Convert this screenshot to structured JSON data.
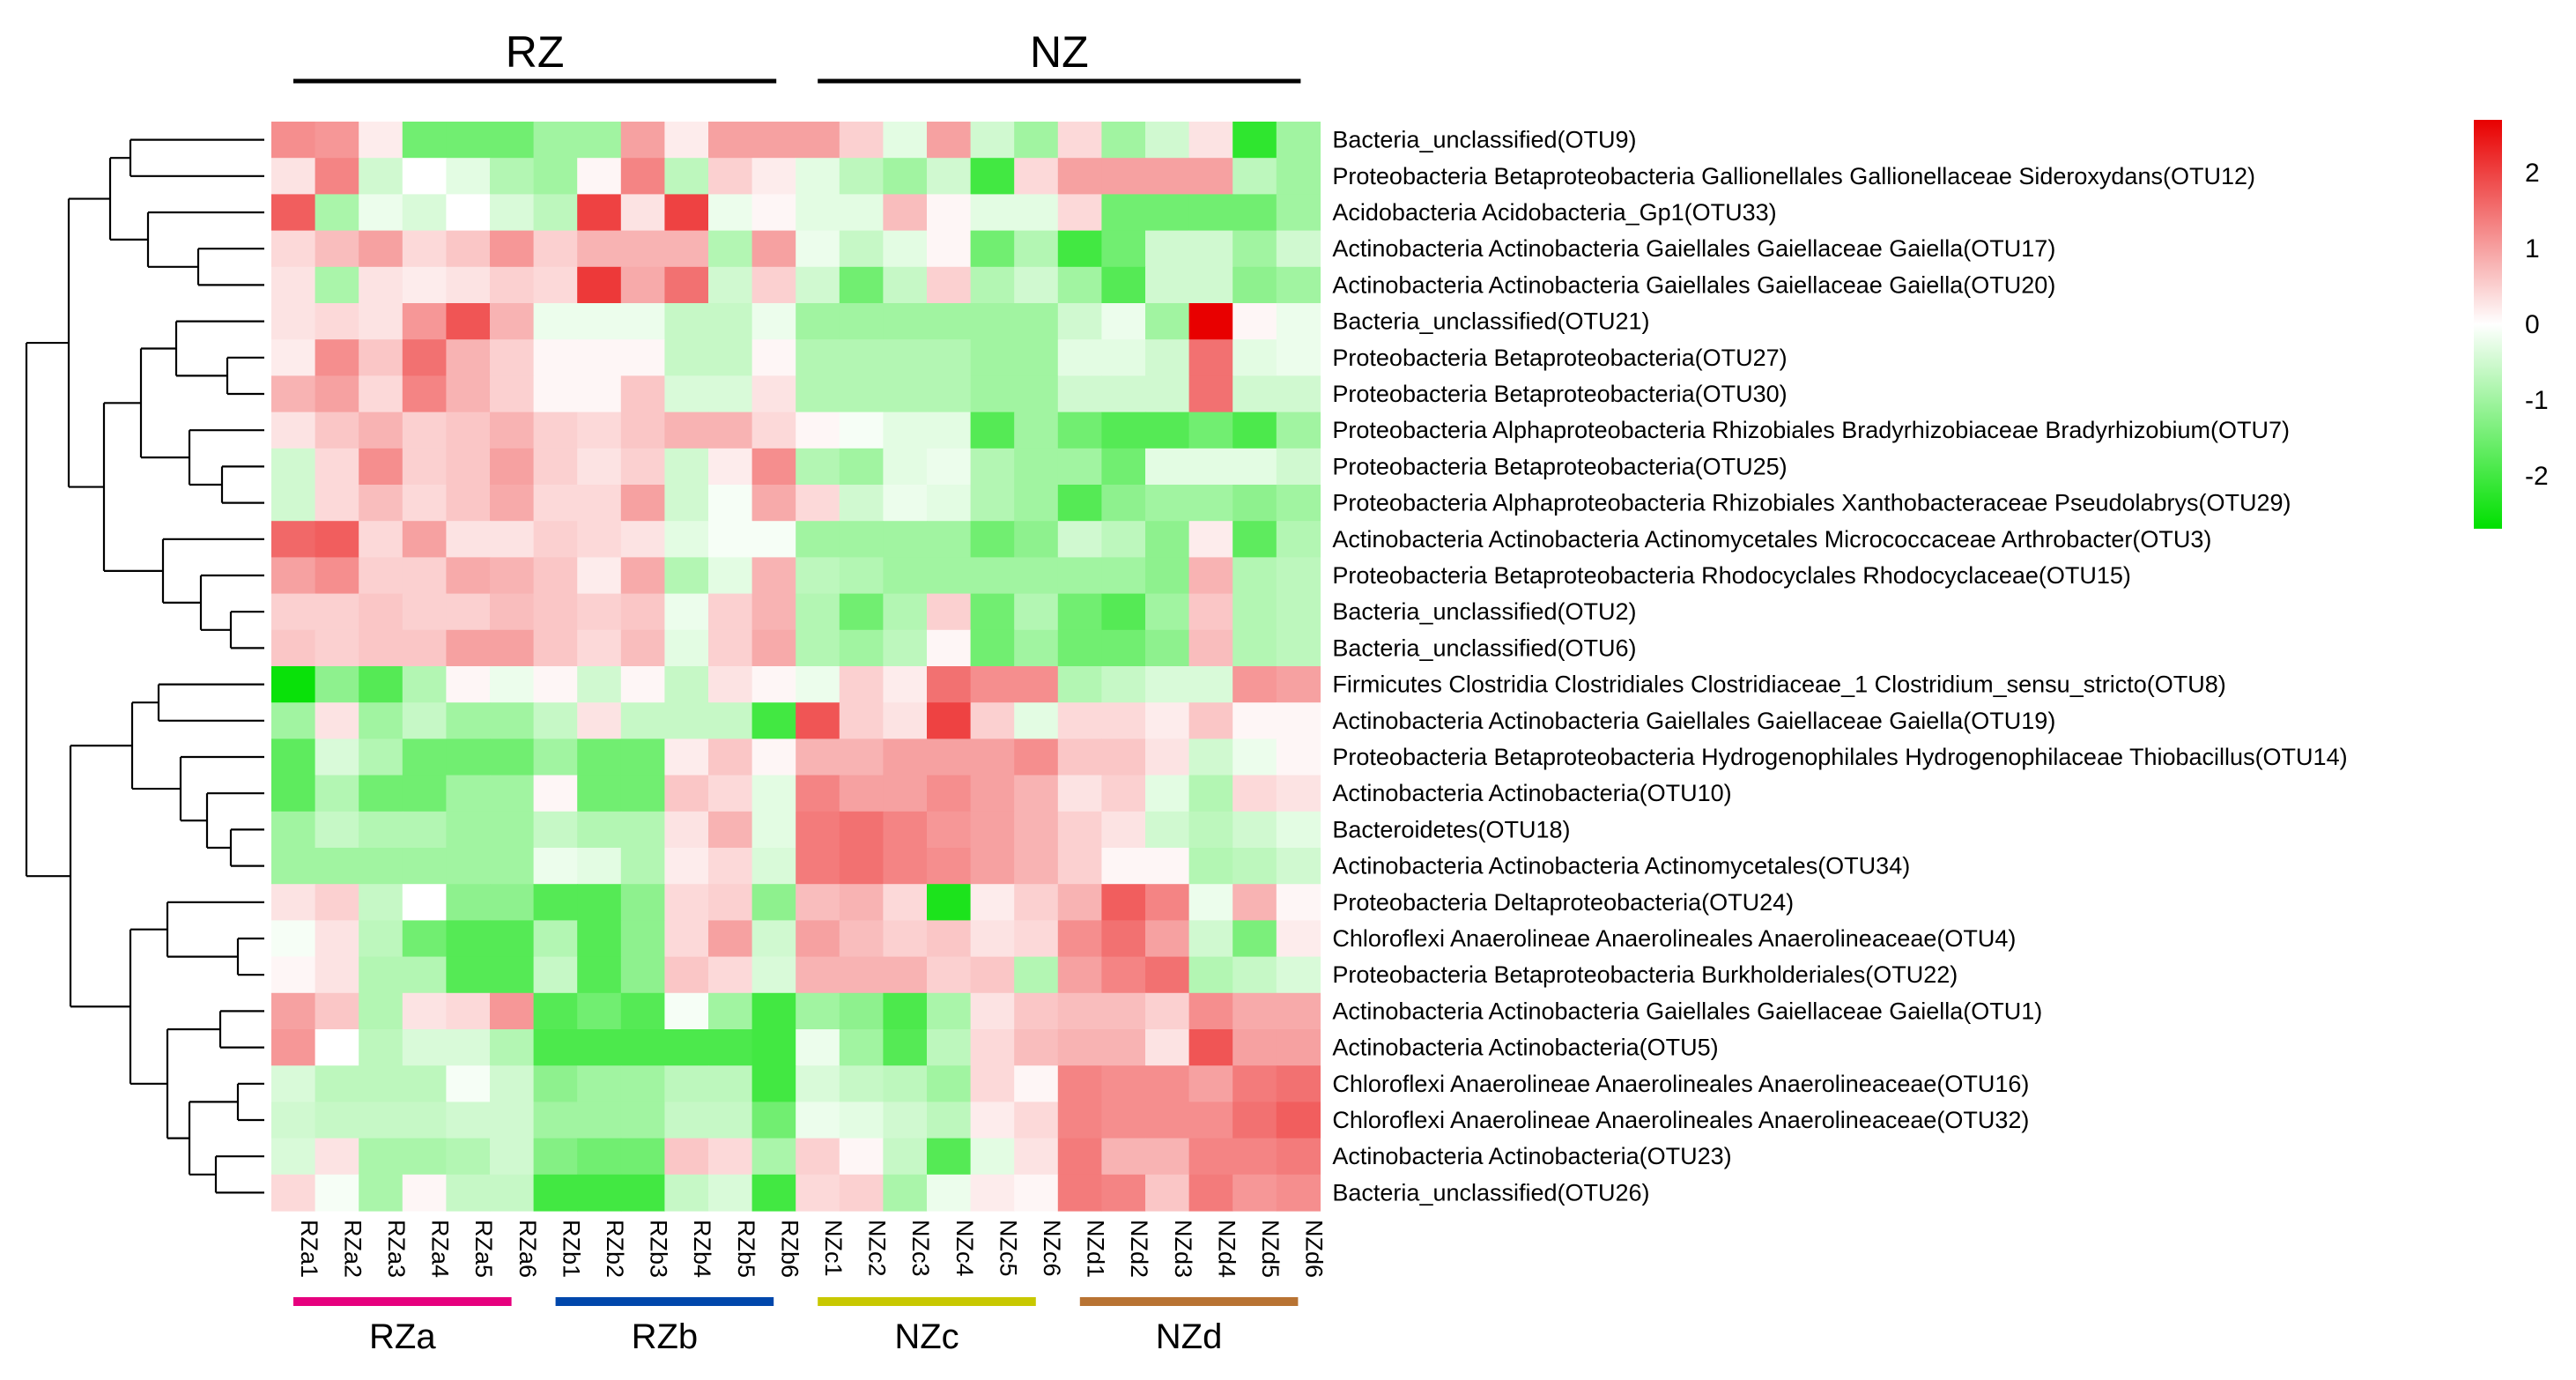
{
  "chart_data": {
    "type": "heatmap",
    "title": "",
    "group_labels": [
      "RZ",
      "NZ"
    ],
    "subgroup_labels": [
      "RZa",
      "RZb",
      "NZc",
      "NZd"
    ],
    "subgroup_colors": [
      "#e6007e",
      "#0047ab",
      "#c8c800",
      "#b87333"
    ],
    "columns": [
      "RZa1",
      "RZa2",
      "RZa3",
      "RZa4",
      "RZa5",
      "RZa6",
      "RZb1",
      "RZb2",
      "RZb3",
      "RZb4",
      "RZb5",
      "RZb6",
      "NZc1",
      "NZc2",
      "NZc3",
      "NZc4",
      "NZc5",
      "NZc6",
      "NZd1",
      "NZd2",
      "NZd3",
      "NZd4",
      "NZd5",
      "NZd6"
    ],
    "rows": [
      "Bacteria_unclassified(OTU9)",
      "Proteobacteria Betaproteobacteria Gallionellales Gallionellaceae Sideroxydans(OTU12)",
      "Acidobacteria Acidobacteria_Gp1(OTU33)",
      "Actinobacteria Actinobacteria Gaiellales Gaiellaceae Gaiella(OTU17)",
      "Actinobacteria Actinobacteria Gaiellales Gaiellaceae Gaiella(OTU20)",
      "Bacteria_unclassified(OTU21)",
      "Proteobacteria Betaproteobacteria(OTU27)",
      "Proteobacteria Betaproteobacteria(OTU30)",
      "Proteobacteria Alphaproteobacteria Rhizobiales Bradyrhizobiaceae Bradyrhizobium(OTU7)",
      "Proteobacteria Betaproteobacteria(OTU25)",
      "Proteobacteria Alphaproteobacteria Rhizobiales Xanthobacteraceae Pseudolabrys(OTU29)",
      "Actinobacteria Actinobacteria Actinomycetales Micrococcaceae Arthrobacter(OTU3)",
      "Proteobacteria Betaproteobacteria Rhodocyclales Rhodocyclaceae(OTU15)",
      "Bacteria_unclassified(OTU2)",
      "Bacteria_unclassified(OTU6)",
      "Firmicutes Clostridia Clostridiales Clostridiaceae_1 Clostridium_sensu_stricto(OTU8)",
      "Actinobacteria Actinobacteria Gaiellales Gaiellaceae Gaiella(OTU19)",
      "Proteobacteria Betaproteobacteria Hydrogenophilales Hydrogenophilaceae Thiobacillus(OTU14)",
      "Actinobacteria Actinobacteria(OTU10)",
      "Bacteroidetes(OTU18)",
      "Actinobacteria Actinobacteria Actinomycetales(OTU34)",
      "Proteobacteria Deltaproteobacteria(OTU24)",
      "Chloroflexi Anaerolineae Anaerolineales Anaerolineaceae(OTU4)",
      "Proteobacteria Betaproteobacteria Burkholderiales(OTU22)",
      "Actinobacteria Actinobacteria Gaiellales Gaiellaceae Gaiella(OTU1)",
      "Actinobacteria Actinobacteria(OTU5)",
      "Chloroflexi Anaerolineae Anaerolineales Anaerolineaceae(OTU16)",
      "Chloroflexi Anaerolineae Anaerolineales Anaerolineaceae(OTU32)",
      "Actinobacteria Actinobacteria(OTU23)",
      "Bacteria_unclassified(OTU26)"
    ],
    "values": [
      [
        1.2,
        1.1,
        0.2,
        -1.5,
        -1.5,
        -1.5,
        -1.0,
        -1.0,
        1.0,
        0.2,
        1.0,
        1.0,
        1.0,
        0.5,
        -0.3,
        1.0,
        -0.5,
        -1.0,
        0.4,
        -1.0,
        -0.5,
        0.3,
        -2.2,
        -1.0
      ],
      [
        0.3,
        1.3,
        -0.5,
        0.0,
        -0.3,
        -0.8,
        -1.0,
        0.1,
        1.3,
        -0.7,
        0.5,
        0.2,
        -0.3,
        -0.7,
        -1.0,
        -0.5,
        -2.0,
        0.4,
        1.0,
        1.0,
        1.0,
        1.0,
        -0.7,
        -1.0
      ],
      [
        1.7,
        -0.9,
        -0.2,
        -0.4,
        0.0,
        -0.4,
        -0.7,
        2.0,
        0.3,
        2.0,
        -0.2,
        0.1,
        -0.3,
        -0.3,
        0.7,
        0.1,
        -0.3,
        -0.3,
        0.4,
        -1.5,
        -1.5,
        -1.5,
        -1.5,
        -1.0
      ],
      [
        0.4,
        0.7,
        1.0,
        0.4,
        0.6,
        1.1,
        0.5,
        0.8,
        0.8,
        0.8,
        -0.8,
        1.0,
        -0.2,
        -0.6,
        -0.3,
        0.1,
        -1.5,
        -0.8,
        -2.0,
        -1.5,
        -0.5,
        -0.5,
        -1.0,
        -0.5
      ],
      [
        0.3,
        -0.9,
        0.3,
        0.2,
        0.3,
        0.5,
        0.4,
        2.1,
        0.9,
        1.5,
        -0.5,
        0.5,
        -0.5,
        -1.5,
        -0.6,
        0.5,
        -0.8,
        -0.5,
        -1.0,
        -1.8,
        -0.5,
        -0.5,
        -1.2,
        -1.0
      ],
      [
        0.3,
        0.4,
        0.3,
        1.1,
        1.8,
        0.8,
        -0.2,
        -0.2,
        -0.2,
        -0.6,
        -0.6,
        -0.2,
        -1.0,
        -1.0,
        -1.0,
        -1.0,
        -1.0,
        -1.0,
        -0.5,
        -0.2,
        -1.0,
        2.7,
        0.1,
        -0.2
      ],
      [
        0.2,
        1.2,
        0.6,
        1.5,
        0.8,
        0.5,
        0.1,
        0.1,
        0.1,
        -0.6,
        -0.6,
        0.1,
        -0.8,
        -0.8,
        -0.8,
        -0.8,
        -1.0,
        -1.0,
        -0.3,
        -0.3,
        -0.5,
        1.5,
        -0.3,
        -0.2
      ],
      [
        0.8,
        1.0,
        0.4,
        1.3,
        0.8,
        0.5,
        0.1,
        0.1,
        0.6,
        -0.4,
        -0.4,
        0.3,
        -0.8,
        -0.8,
        -0.8,
        -0.8,
        -1.0,
        -1.0,
        -0.5,
        -0.5,
        -0.5,
        1.5,
        -0.5,
        -0.5
      ],
      [
        0.3,
        0.6,
        0.8,
        0.5,
        0.6,
        0.8,
        0.5,
        0.4,
        0.6,
        0.8,
        0.8,
        0.4,
        0.1,
        -0.1,
        -0.3,
        -0.3,
        -1.8,
        -1.0,
        -1.5,
        -1.8,
        -1.8,
        -1.5,
        -1.9,
        -1.0
      ],
      [
        -0.5,
        0.4,
        1.2,
        0.5,
        0.6,
        1.0,
        0.5,
        0.3,
        0.5,
        -0.5,
        0.2,
        1.2,
        -0.8,
        -1.0,
        -0.3,
        -0.2,
        -0.8,
        -1.0,
        -1.0,
        -1.5,
        -0.3,
        -0.3,
        -0.3,
        -0.5
      ],
      [
        -0.5,
        0.4,
        0.7,
        0.4,
        0.6,
        0.9,
        0.4,
        0.4,
        1.0,
        -0.5,
        -0.1,
        0.9,
        0.4,
        -0.5,
        -0.2,
        -0.3,
        -0.8,
        -1.0,
        -1.8,
        -1.2,
        -1.0,
        -1.0,
        -1.2,
        -1.0
      ],
      [
        1.6,
        1.7,
        0.4,
        1.0,
        0.3,
        0.3,
        0.5,
        0.4,
        0.3,
        -0.3,
        -0.1,
        -0.1,
        -1.0,
        -1.0,
        -1.0,
        -1.0,
        -1.5,
        -1.2,
        -0.5,
        -0.7,
        -1.2,
        0.2,
        -1.7,
        -0.8
      ],
      [
        1.0,
        1.2,
        0.5,
        0.5,
        0.9,
        0.8,
        0.6,
        0.2,
        0.9,
        -0.8,
        -0.3,
        0.8,
        -0.7,
        -0.8,
        -1.0,
        -1.0,
        -1.0,
        -1.0,
        -1.0,
        -1.0,
        -1.2,
        0.8,
        -0.8,
        -0.7
      ],
      [
        0.5,
        0.5,
        0.6,
        0.5,
        0.5,
        0.7,
        0.6,
        0.5,
        0.6,
        -0.2,
        0.5,
        0.8,
        -0.8,
        -1.5,
        -0.8,
        0.5,
        -1.5,
        -0.8,
        -1.5,
        -1.8,
        -1.0,
        0.6,
        -0.8,
        -0.7
      ],
      [
        0.6,
        0.5,
        0.6,
        0.6,
        1.0,
        1.0,
        0.6,
        0.4,
        0.7,
        -0.3,
        0.5,
        0.9,
        -0.8,
        -1.0,
        -0.7,
        0.1,
        -1.5,
        -1.0,
        -1.5,
        -1.5,
        -1.2,
        0.7,
        -0.8,
        -0.7
      ],
      [
        -2.6,
        -1.2,
        -1.8,
        -0.8,
        0.1,
        -0.2,
        0.1,
        -0.5,
        0.1,
        -0.6,
        0.3,
        0.1,
        -0.2,
        0.5,
        0.2,
        1.5,
        1.2,
        1.2,
        -0.8,
        -0.6,
        -0.4,
        -0.4,
        1.1,
        1.0
      ],
      [
        -1.0,
        0.3,
        -1.0,
        -0.6,
        -1.0,
        -1.0,
        -0.6,
        0.3,
        -0.6,
        -0.6,
        -0.6,
        -2.0,
        1.8,
        0.5,
        0.3,
        2.0,
        0.5,
        -0.3,
        0.4,
        0.4,
        0.2,
        0.6,
        0.1,
        0.1
      ],
      [
        -1.7,
        -0.4,
        -0.8,
        -1.5,
        -1.5,
        -1.5,
        -1.0,
        -1.5,
        -1.5,
        0.2,
        0.6,
        0.1,
        0.8,
        0.8,
        1.0,
        1.0,
        1.0,
        1.2,
        0.6,
        0.6,
        0.3,
        -0.5,
        -0.2,
        0.1
      ],
      [
        -1.7,
        -0.8,
        -1.5,
        -1.5,
        -1.0,
        -1.0,
        0.1,
        -1.5,
        -1.5,
        0.6,
        0.4,
        -0.3,
        1.3,
        1.0,
        1.0,
        1.2,
        1.0,
        0.8,
        0.3,
        0.5,
        -0.3,
        -0.8,
        0.4,
        0.3
      ],
      [
        -1.0,
        -0.6,
        -0.8,
        -0.8,
        -1.0,
        -1.0,
        -0.6,
        -0.8,
        -0.8,
        0.3,
        0.8,
        -0.3,
        1.4,
        1.5,
        1.3,
        1.1,
        1.0,
        0.8,
        0.5,
        0.3,
        -0.5,
        -0.7,
        -0.5,
        -0.3
      ],
      [
        -1.0,
        -1.0,
        -1.0,
        -1.0,
        -1.0,
        -1.0,
        -0.2,
        -0.3,
        -0.8,
        0.2,
        0.4,
        -0.4,
        1.4,
        1.5,
        1.3,
        1.2,
        1.0,
        0.8,
        0.5,
        0.1,
        0.1,
        -0.8,
        -0.7,
        -0.5
      ],
      [
        0.3,
        0.5,
        -0.6,
        0.0,
        -1.2,
        -1.2,
        -1.8,
        -1.8,
        -1.2,
        0.4,
        0.5,
        -1.2,
        0.7,
        0.8,
        0.4,
        -2.4,
        0.2,
        0.5,
        0.8,
        1.7,
        1.3,
        -0.2,
        0.8,
        0.1
      ],
      [
        -0.1,
        0.3,
        -0.7,
        -1.5,
        -1.8,
        -1.8,
        -0.8,
        -1.8,
        -1.2,
        0.4,
        1.0,
        -0.5,
        1.0,
        0.7,
        0.5,
        0.6,
        0.3,
        0.4,
        1.2,
        1.5,
        1.0,
        -0.5,
        -1.4,
        0.2
      ],
      [
        0.1,
        0.3,
        -0.8,
        -0.8,
        -1.8,
        -1.8,
        -0.6,
        -1.8,
        -1.2,
        0.6,
        0.4,
        -0.4,
        0.8,
        0.8,
        0.8,
        0.5,
        0.6,
        -0.8,
        1.0,
        1.3,
        1.5,
        -0.8,
        -0.6,
        -0.4
      ],
      [
        1.0,
        0.6,
        -0.8,
        0.3,
        0.4,
        1.1,
        -1.8,
        -1.5,
        -1.8,
        -0.1,
        -1.0,
        -2.0,
        -1.0,
        -1.2,
        -1.9,
        -0.9,
        0.3,
        0.6,
        0.7,
        0.7,
        0.5,
        1.2,
        0.9,
        0.9
      ],
      [
        1.1,
        0.0,
        -0.7,
        -0.4,
        -0.4,
        -0.8,
        -1.9,
        -1.9,
        -1.9,
        -1.9,
        -1.9,
        -2.0,
        -0.2,
        -1.0,
        -1.8,
        -0.7,
        0.4,
        0.7,
        0.8,
        0.8,
        0.3,
        1.8,
        1.0,
        1.0
      ],
      [
        -0.4,
        -0.7,
        -0.7,
        -0.7,
        -0.1,
        -0.5,
        -1.2,
        -1.0,
        -1.0,
        -0.7,
        -0.7,
        -2.0,
        -0.4,
        -0.6,
        -0.7,
        -1.0,
        0.4,
        0.1,
        1.3,
        1.2,
        1.2,
        1.0,
        1.4,
        1.5
      ],
      [
        -0.5,
        -0.6,
        -0.6,
        -0.6,
        -0.5,
        -0.5,
        -1.0,
        -1.0,
        -1.0,
        -0.6,
        -0.6,
        -1.5,
        -0.2,
        -0.3,
        -0.5,
        -0.7,
        0.2,
        0.4,
        1.3,
        1.2,
        1.2,
        1.2,
        1.5,
        1.7
      ],
      [
        -0.4,
        0.3,
        -0.9,
        -0.9,
        -0.8,
        -0.5,
        -1.3,
        -1.5,
        -1.5,
        0.6,
        0.4,
        -0.9,
        0.5,
        0.1,
        -0.6,
        -1.8,
        -0.3,
        0.3,
        1.4,
        0.8,
        0.8,
        1.3,
        1.3,
        1.4
      ],
      [
        0.4,
        -0.1,
        -0.9,
        0.1,
        -0.6,
        -0.6,
        -2.0,
        -2.0,
        -2.0,
        -0.6,
        -0.4,
        -2.0,
        0.4,
        0.5,
        -0.9,
        -0.2,
        0.2,
        0.1,
        1.4,
        1.3,
        0.6,
        1.4,
        1.1,
        1.2
      ]
    ],
    "colorscale": {
      "low": "#00e000",
      "mid": "#ffffff",
      "high": "#e80000",
      "vmin": -2.7,
      "vmax": 2.7
    },
    "legend_ticks": [
      "2",
      "1",
      "0",
      "-1",
      "-2"
    ],
    "legend_values": [
      2,
      1,
      0,
      -1,
      -2
    ],
    "legend_position": "top-right",
    "row_dendrogram_order": "left",
    "xlabel": "",
    "ylabel": ""
  }
}
